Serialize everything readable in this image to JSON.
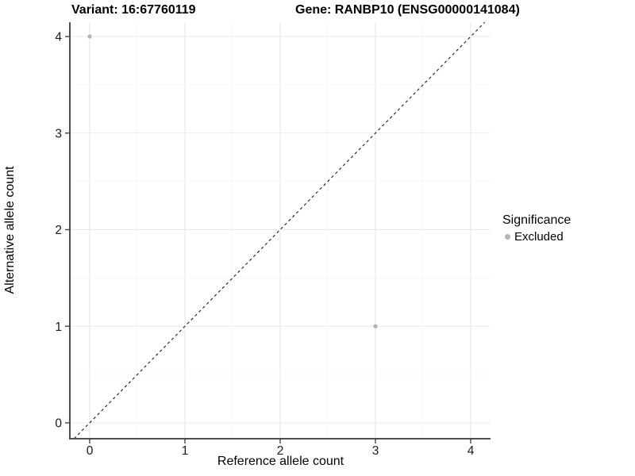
{
  "figure": {
    "title_left": "Variant: 16:67760119",
    "title_right": "Gene: RANBP10 (ENSG00000141084)"
  },
  "chart_data": {
    "type": "scatter",
    "title": "Variant: 16:67760119   Gene: RANBP10 (ENSG00000141084)",
    "xlabel": "Reference allele count",
    "ylabel": "Alternative allele count",
    "xlim": [
      -0.21,
      4.21
    ],
    "ylim": [
      -0.17,
      4.15
    ],
    "xticks": [
      0,
      1,
      2,
      3,
      4
    ],
    "yticks": [
      0,
      1,
      2,
      3,
      4
    ],
    "grid": "major and minor gridlines, minor at 0.5 steps",
    "legend_position": "right",
    "series": [
      {
        "name": "Excluded",
        "color": "#b3b3b3",
        "points": [
          {
            "x": 0,
            "y": 4
          },
          {
            "x": 3,
            "y": 1
          }
        ]
      }
    ],
    "reference_line": {
      "type": "identity y=x",
      "style": "dashed",
      "color": "#1a1a1a"
    },
    "legend": {
      "title": "Significance",
      "items": [
        {
          "label": "Excluded",
          "color": "#b3b3b3"
        }
      ]
    }
  },
  "colors": {
    "background": "#ffffff",
    "axis_line": "#4d4d4d",
    "grid_major": "#e8e8e8",
    "grid_minor": "#f3f3f3",
    "tick_label": "#1a1a1a",
    "point": "#b3b3b3"
  }
}
